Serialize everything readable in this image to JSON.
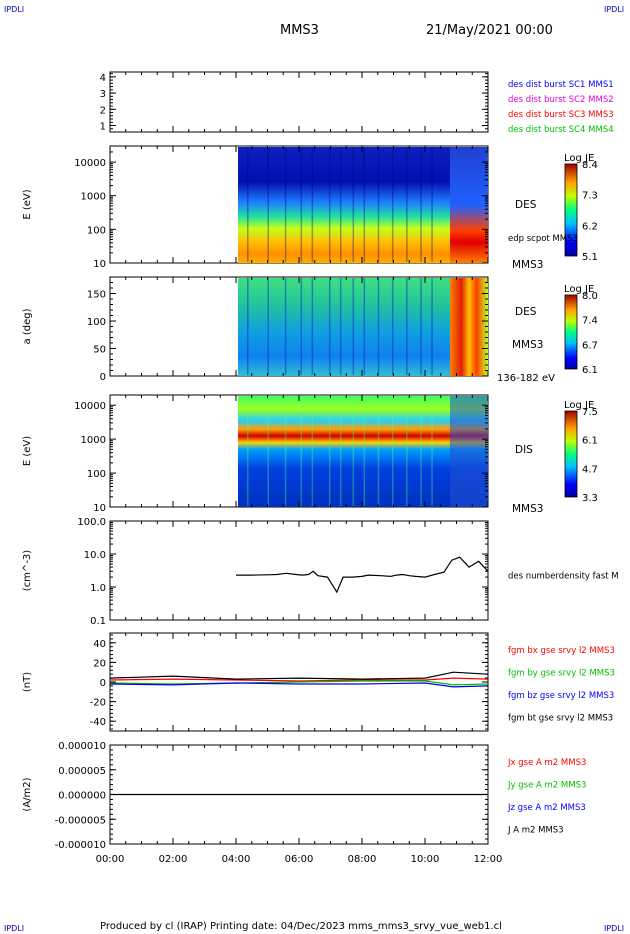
{
  "header": {
    "corner_tl": "IPDLI",
    "corner_tr": "IPDLI",
    "corner_bl": "IPDLI",
    "corner_br": "IPDLI",
    "spacecraft": "MMS3",
    "date": "21/May/2021 00:00"
  },
  "footer": "Produced by cl (IRAP)   Printing date: 04/Dec/2023   mms_mms3_srvy_vue_web1.cl",
  "colors": {
    "blue": "#0000ff",
    "magenta": "#e000e0",
    "red": "#ff0000",
    "green": "#00c000",
    "black": "#000000"
  },
  "chart_data": [
    {
      "type": "table",
      "panel": "burst",
      "yticks": [
        "1",
        "2",
        "3",
        "4"
      ],
      "ylim": [
        0.6,
        4.3
      ],
      "legend": [
        {
          "name": "des dist burst SC1 MMS1",
          "color": "#0000ff"
        },
        {
          "name": "des dist burst SC2 MMS2",
          "color": "#e000e0"
        },
        {
          "name": "des dist burst SC3 MMS3",
          "color": "#ff0000"
        },
        {
          "name": "des dist burst SC4 MMS4",
          "color": "#00c000"
        }
      ]
    },
    {
      "type": "heatmap",
      "panel": "des-energy",
      "ylabel": "E (eV)",
      "yscale": "log",
      "ylim": [
        10,
        30000
      ],
      "yticks": [
        "10",
        "100",
        "1000",
        "10000"
      ],
      "data_start_hour": 4.0,
      "side_labels": [
        "DES",
        "MMS3"
      ],
      "overlay_label": "edp scpot MMS3",
      "colorbar": {
        "title": "Log JE",
        "min": 5.1,
        "max": 8.4,
        "ticks": [
          "8.4",
          "7.3",
          "6.2",
          "5.1"
        ]
      }
    },
    {
      "type": "heatmap",
      "panel": "des-pitch",
      "ylabel": "a (deg)",
      "ylim": [
        0,
        180
      ],
      "yticks": [
        "0",
        "50",
        "100",
        "150"
      ],
      "data_start_hour": 4.0,
      "side_labels": [
        "DES",
        "MMS3"
      ],
      "energy_range": "136-182 eV",
      "colorbar": {
        "title": "Log JE",
        "min": 6.1,
        "max": 8.0,
        "ticks": [
          "8.0",
          "7.4",
          "6.7",
          "6.1"
        ]
      }
    },
    {
      "type": "heatmap",
      "panel": "dis-energy",
      "ylabel": "E (eV)",
      "yscale": "log",
      "ylim": [
        10,
        20000
      ],
      "yticks": [
        "10",
        "100",
        "1000",
        "10000"
      ],
      "data_start_hour": 4.0,
      "side_labels": [
        "DIS",
        "MMS3"
      ],
      "colorbar": {
        "title": "Log JE",
        "min": 3.3,
        "max": 7.5,
        "ticks": [
          "7.5",
          "6.1",
          "4.7",
          "3.3"
        ]
      }
    },
    {
      "type": "line",
      "panel": "density",
      "ylabel": "(cm^-3)",
      "yscale": "log",
      "ylim": [
        0.1,
        100
      ],
      "yticks": [
        "0.1",
        "1.0",
        "10.0",
        "100.0"
      ],
      "legend": [
        {
          "name": "des numberdensity fast M",
          "color": "#000000"
        }
      ],
      "series": [
        {
          "x": [
            4.0,
            4.5,
            5.0,
            5.3,
            5.6,
            5.9,
            6.1,
            6.3,
            6.45,
            6.6,
            6.9,
            7.05,
            7.2,
            7.4,
            7.7,
            8.0,
            8.2,
            8.6,
            8.9,
            9.1,
            9.3,
            9.5,
            9.7,
            10.0,
            10.3,
            10.6,
            10.85,
            11.1,
            11.4,
            11.7,
            12.0
          ],
          "y": [
            2.3,
            2.3,
            2.35,
            2.4,
            2.6,
            2.4,
            2.3,
            2.4,
            3.0,
            2.2,
            2.0,
            1.2,
            0.7,
            2.0,
            2.0,
            2.1,
            2.3,
            2.2,
            2.1,
            2.3,
            2.4,
            2.2,
            2.1,
            2.0,
            2.4,
            2.8,
            6.5,
            8.0,
            4.0,
            6.0,
            3.0
          ]
        }
      ]
    },
    {
      "type": "line",
      "panel": "fgm",
      "ylabel": "(nT)",
      "ylim": [
        -50,
        50
      ],
      "yticks": [
        "-40",
        "-20",
        "0",
        "20",
        "40"
      ],
      "legend": [
        {
          "name": "fgm bx gse srvy l2 MMS3",
          "color": "#ff0000"
        },
        {
          "name": "fgm by gse srvy l2 MMS3",
          "color": "#00c000"
        },
        {
          "name": "fgm bz gse srvy l2 MMS3",
          "color": "#0000ff"
        },
        {
          "name": "fgm bt gse srvy l2 MMS3",
          "color": "#000000"
        }
      ],
      "series": [
        {
          "name": "fgm bx gse srvy l2 MMS3",
          "x": [
            0,
            2,
            4,
            6,
            8,
            10,
            10.9,
            12
          ],
          "y": [
            2,
            3,
            2,
            1,
            2,
            2,
            4,
            3
          ]
        },
        {
          "name": "fgm by gse srvy l2 MMS3",
          "x": [
            0,
            2,
            4,
            6,
            8,
            10,
            10.9,
            12
          ],
          "y": [
            -1,
            -2,
            -1,
            0,
            1,
            1,
            -3,
            -2
          ]
        },
        {
          "name": "fgm bz gse srvy l2 MMS3",
          "x": [
            0,
            2,
            4,
            6,
            8,
            10,
            10.9,
            12
          ],
          "y": [
            -2,
            -3,
            -1,
            -2,
            -2,
            -1,
            -5,
            -4
          ]
        },
        {
          "name": "fgm bt gse srvy l2 MMS3",
          "x": [
            0,
            2,
            4,
            6,
            8,
            10,
            10.9,
            12
          ],
          "y": [
            4,
            6,
            3,
            4,
            3,
            4,
            10,
            8
          ]
        }
      ]
    },
    {
      "type": "line",
      "panel": "current",
      "ylabel": "(A/m2)",
      "ylim": [
        -1e-05,
        1e-05
      ],
      "yticks": [
        "-0.000010",
        "-0.000005",
        "0.000000",
        "0.000005",
        "0.000010"
      ],
      "legend": [
        {
          "name": "Jx gse A m2 MMS3",
          "color": "#ff0000"
        },
        {
          "name": "Jy gse A m2 MMS3",
          "color": "#00c000"
        },
        {
          "name": "Jz gse A m2 MMS3",
          "color": "#0000ff"
        },
        {
          "name": "J A m2 MMS3",
          "color": "#000000"
        }
      ],
      "series": [
        {
          "x": [
            0,
            12
          ],
          "y": [
            0,
            0
          ]
        }
      ]
    }
  ],
  "time_axis": {
    "range_hours": [
      0,
      12
    ],
    "ticks": [
      "00:00",
      "02:00",
      "04:00",
      "06:00",
      "08:00",
      "10:00",
      "12:00"
    ]
  }
}
